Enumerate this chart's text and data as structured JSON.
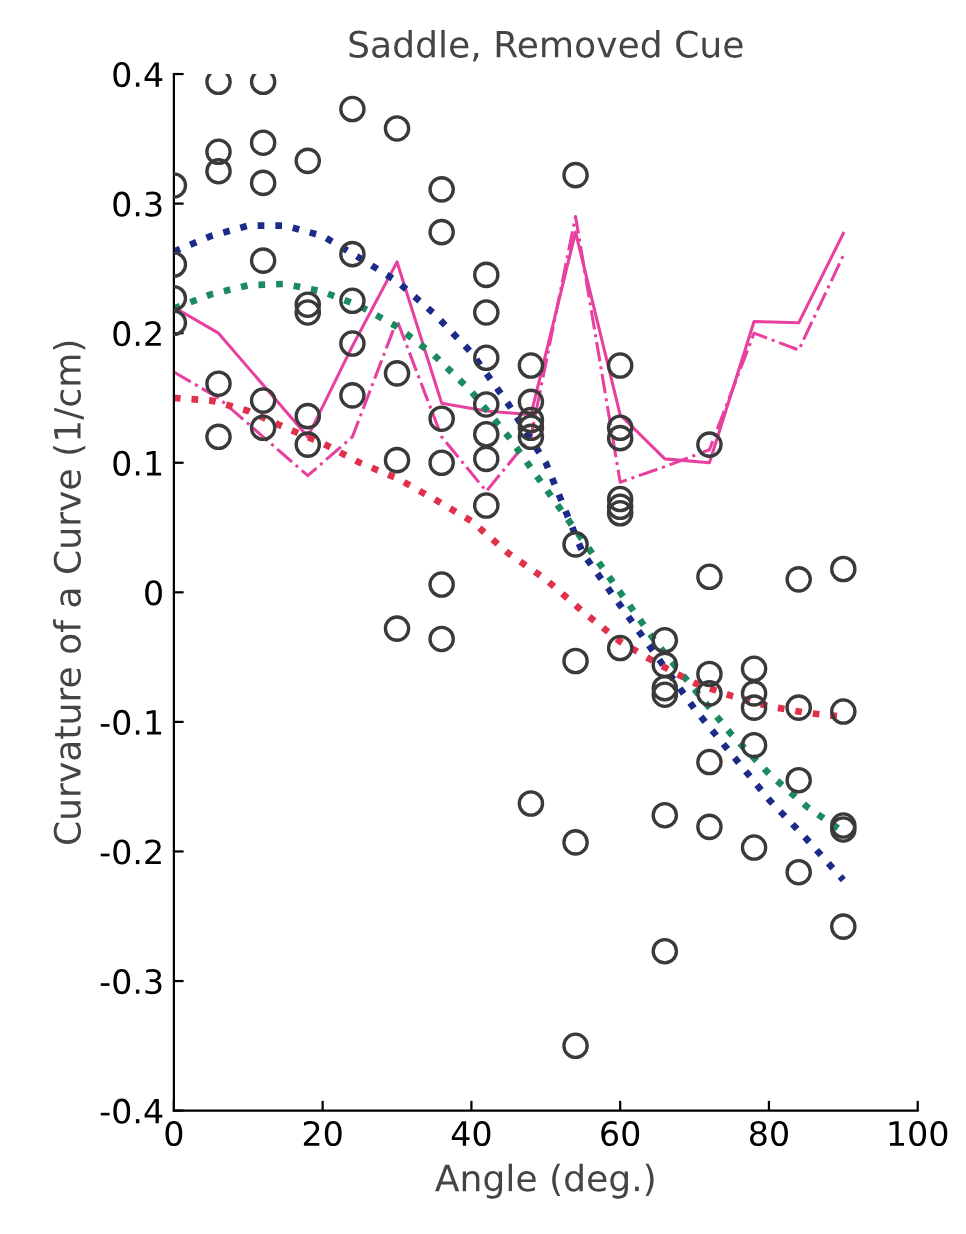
{
  "chart_data": {
    "type": "scatter",
    "title": "Saddle, Removed Cue",
    "xlabel": "Angle (deg.)",
    "ylabel": "Curvature of a Curve (1/cm)",
    "xlim": [
      0,
      100
    ],
    "ylim": [
      -0.4,
      0.4
    ],
    "xticks": [
      0,
      20,
      40,
      60,
      80,
      100
    ],
    "yticks": [
      -0.4,
      -0.3,
      -0.2,
      -0.1,
      0,
      0.1,
      0.2,
      0.3,
      0.4
    ],
    "grid": false,
    "legend": false,
    "series": [
      {
        "marker": "circle",
        "color": "#3a3a3a",
        "x": [
          0,
          0,
          0,
          0,
          6,
          6,
          6,
          6,
          6,
          12,
          12,
          12,
          12,
          12,
          12,
          18,
          18,
          18,
          18,
          18,
          24,
          24,
          24,
          24,
          24,
          30,
          30,
          30,
          30,
          36,
          36,
          36,
          36,
          36,
          36,
          42,
          42,
          42,
          42,
          42,
          42,
          42,
          48,
          48,
          48,
          48,
          48,
          48,
          54,
          54,
          54,
          54,
          54,
          60,
          60,
          60,
          60,
          60,
          60,
          60,
          66,
          66,
          66,
          66,
          66,
          66,
          72,
          72,
          72,
          72,
          72,
          72,
          78,
          78,
          78,
          78,
          78,
          84,
          84,
          84,
          84,
          90,
          90,
          90,
          90,
          90
        ],
        "values": [
          0.314,
          0.253,
          0.227,
          0.208,
          0.394,
          0.34,
          0.325,
          0.161,
          0.12,
          0.394,
          0.347,
          0.316,
          0.256,
          0.148,
          0.127,
          0.333,
          0.222,
          0.216,
          0.136,
          0.114,
          0.373,
          0.261,
          0.225,
          0.192,
          0.152,
          0.358,
          0.169,
          0.102,
          -0.028,
          0.311,
          0.278,
          0.134,
          0.1,
          0.006,
          -0.036,
          0.245,
          0.216,
          0.181,
          0.145,
          0.122,
          0.103,
          0.067,
          0.175,
          0.147,
          0.133,
          0.127,
          0.12,
          -0.163,
          0.322,
          0.037,
          -0.053,
          -0.193,
          -0.35,
          0.175,
          0.127,
          0.119,
          0.072,
          0.066,
          0.061,
          -0.043,
          -0.037,
          -0.056,
          -0.074,
          -0.079,
          -0.172,
          -0.277,
          0.114,
          0.012,
          -0.063,
          -0.078,
          -0.131,
          -0.181,
          -0.059,
          -0.078,
          -0.089,
          -0.118,
          -0.197,
          0.01,
          -0.089,
          -0.145,
          -0.216,
          0.018,
          -0.092,
          -0.18,
          -0.183,
          -0.258
        ]
      },
      {
        "type": "line",
        "line_style": "solid",
        "marker": "none",
        "color": "#e8409e",
        "x": [
          0,
          6,
          12,
          18,
          24,
          30,
          36,
          42,
          48,
          54,
          60,
          66,
          72,
          78,
          84,
          90
        ],
        "values": [
          0.22,
          0.2,
          0.16,
          0.12,
          0.19,
          0.255,
          0.146,
          0.14,
          0.137,
          0.278,
          0.137,
          0.103,
          0.1,
          0.209,
          0.208,
          0.277
        ]
      },
      {
        "type": "line",
        "line_style": "dashdot",
        "marker": "none",
        "color": "#e8409e",
        "x": [
          0,
          6,
          12,
          18,
          24,
          30,
          36,
          42,
          48,
          54,
          60,
          66,
          72,
          78,
          84,
          90
        ],
        "values": [
          0.17,
          0.15,
          0.12,
          0.09,
          0.12,
          0.21,
          0.12,
          0.078,
          0.12,
          0.29,
          0.085,
          0.097,
          0.11,
          0.2,
          0.187,
          0.26
        ]
      },
      {
        "type": "line",
        "line_style": "dotted",
        "marker": "none",
        "color": "#1c2a8a",
        "x": [
          0,
          5,
          10,
          15,
          20,
          25,
          30,
          35,
          40,
          45,
          50,
          55,
          60,
          65,
          70,
          75,
          80,
          85,
          90
        ],
        "values": [
          0.263,
          0.275,
          0.283,
          0.283,
          0.275,
          0.258,
          0.24,
          0.215,
          0.185,
          0.145,
          0.1,
          0.03,
          -0.01,
          -0.05,
          -0.09,
          -0.125,
          -0.16,
          -0.19,
          -0.222
        ]
      },
      {
        "type": "line",
        "line_style": "dotted",
        "marker": "none",
        "color": "#1a8a60",
        "x": [
          0,
          5,
          10,
          15,
          20,
          25,
          30,
          35,
          40,
          45,
          50,
          55,
          60,
          65,
          70,
          75,
          80,
          85,
          90
        ],
        "values": [
          0.219,
          0.23,
          0.237,
          0.238,
          0.232,
          0.221,
          0.205,
          0.183,
          0.155,
          0.12,
          0.08,
          0.04,
          0,
          -0.04,
          -0.075,
          -0.11,
          -0.14,
          -0.165,
          -0.185
        ]
      },
      {
        "type": "line",
        "line_style": "dotted",
        "marker": "none",
        "color": "#e0304a",
        "x": [
          0,
          5,
          10,
          15,
          20,
          25,
          30,
          35,
          40,
          45,
          50,
          55,
          60,
          65,
          70,
          75,
          80,
          85,
          90
        ],
        "values": [
          0.15,
          0.148,
          0.14,
          0.127,
          0.115,
          0.1,
          0.088,
          0.072,
          0.055,
          0.03,
          0.01,
          -0.015,
          -0.038,
          -0.055,
          -0.07,
          -0.08,
          -0.088,
          -0.093,
          -0.096
        ]
      }
    ]
  }
}
